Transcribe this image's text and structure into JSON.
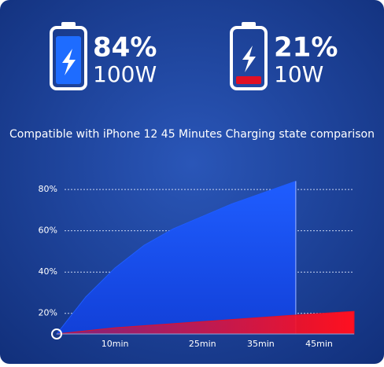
{
  "header": {
    "badges": [
      {
        "percent": "84%",
        "power": "100W"
      },
      {
        "percent": "21%",
        "power": "10W"
      }
    ]
  },
  "chart_data": {
    "type": "area",
    "title": "Compatible with iPhone 12 45 Minutes Charging state comparison",
    "series": [
      {
        "color": "#1e5cff",
        "x": [
          0,
          5,
          10,
          15,
          20,
          25,
          30,
          35,
          41
        ],
        "values": [
          10,
          28,
          42,
          53,
          61,
          67,
          73,
          78,
          84
        ]
      },
      {
        "color": "#e0102a",
        "x": [
          0,
          10,
          20,
          30,
          40,
          51
        ],
        "values": [
          10,
          13,
          15,
          17,
          19,
          21
        ]
      }
    ],
    "xlim": [
      0,
      51
    ],
    "xticks": [
      {
        "value": 10,
        "label": "10min"
      },
      {
        "value": 25,
        "label": "25min"
      },
      {
        "value": 35,
        "label": "35min"
      },
      {
        "value": 45,
        "label": "45min"
      }
    ],
    "ylim": [
      10,
      85
    ],
    "yticks": [
      {
        "value": 20,
        "label": "20%"
      },
      {
        "value": 40,
        "label": "40%"
      },
      {
        "value": 60,
        "label": "60%"
      },
      {
        "value": 80,
        "label": "80%"
      }
    ],
    "grid": true
  }
}
